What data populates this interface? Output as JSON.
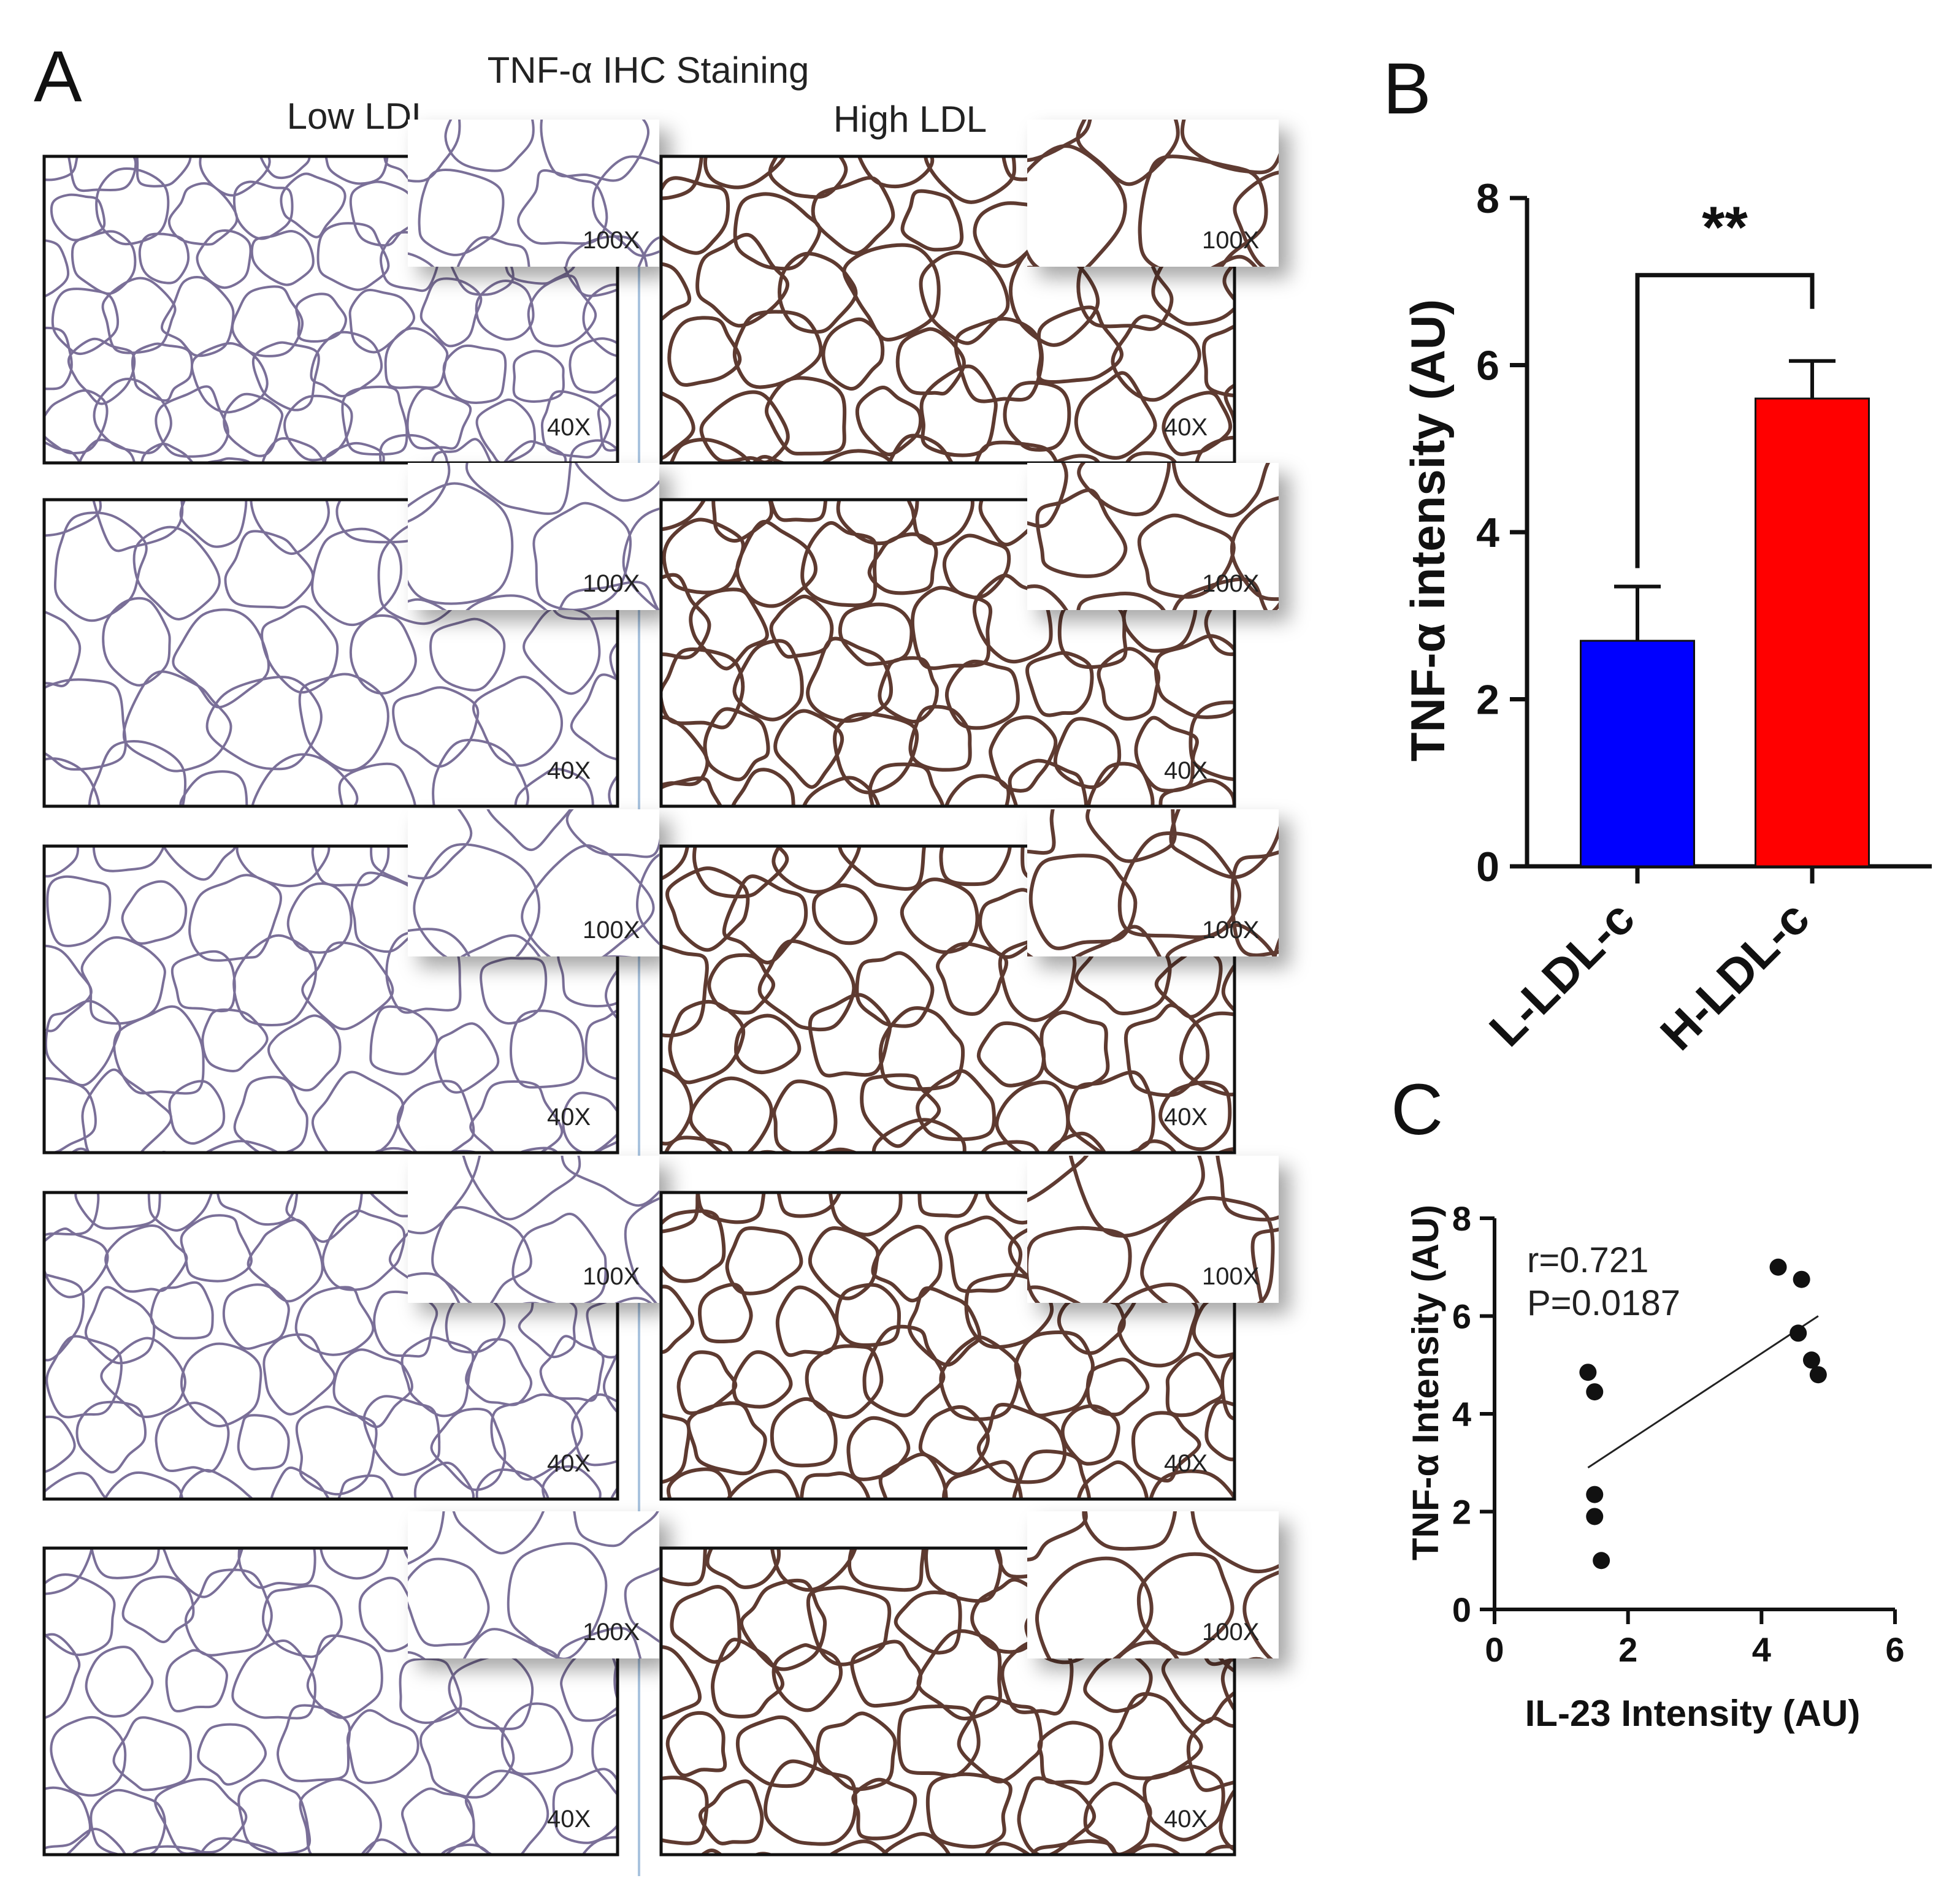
{
  "panel_a": {
    "letter": "A",
    "title": "TNF-α IHC Staining",
    "columns": [
      "Low LDL",
      "High LDL"
    ],
    "rows": 5,
    "main_magnification": "40X",
    "inset_magnification": "100X"
  },
  "panel_b": {
    "letter": "B"
  },
  "panel_c": {
    "letter": "C"
  },
  "colors": {
    "l_ldl_bar": "#0000ff",
    "h_ldl_bar": "#ff0000",
    "low_ldl_tissue": "#7a6f98",
    "high_ldl_tissue": "#5e3a30",
    "divider": "#a9c3de"
  },
  "chart_data": [
    {
      "type": "bar",
      "categories": [
        "L-LDL-c",
        "H-LDL-c"
      ],
      "values": [
        2.7,
        5.6
      ],
      "errors": [
        0.65,
        0.45
      ],
      "ylabel": "TNF-α intensity (AU)",
      "xlabel": "",
      "ylim": [
        0,
        8
      ],
      "yticks": [
        0,
        2,
        4,
        6,
        8
      ],
      "significance": "**",
      "grid": false
    },
    {
      "type": "scatter",
      "xlabel": "IL-23 Intensity (AU)",
      "ylabel": "TNF-α Intensity (AU)",
      "xlim": [
        0,
        6
      ],
      "ylim": [
        0,
        8
      ],
      "xticks": [
        0,
        2,
        4,
        6
      ],
      "yticks": [
        0,
        2,
        4,
        6,
        8
      ],
      "points": [
        {
          "x": 1.4,
          "y": 4.85
        },
        {
          "x": 1.5,
          "y": 4.45
        },
        {
          "x": 1.5,
          "y": 2.35
        },
        {
          "x": 1.5,
          "y": 1.9
        },
        {
          "x": 1.6,
          "y": 1.0
        },
        {
          "x": 4.25,
          "y": 7.0
        },
        {
          "x": 4.55,
          "y": 5.65
        },
        {
          "x": 4.6,
          "y": 6.75
        },
        {
          "x": 4.75,
          "y": 5.1
        },
        {
          "x": 4.85,
          "y": 4.8
        }
      ],
      "fit_line": {
        "x": [
          1.4,
          4.85
        ],
        "y": [
          2.9,
          6.0
        ]
      },
      "annotations": [
        "r=0.721",
        "P=0.0187"
      ],
      "grid": false
    }
  ]
}
